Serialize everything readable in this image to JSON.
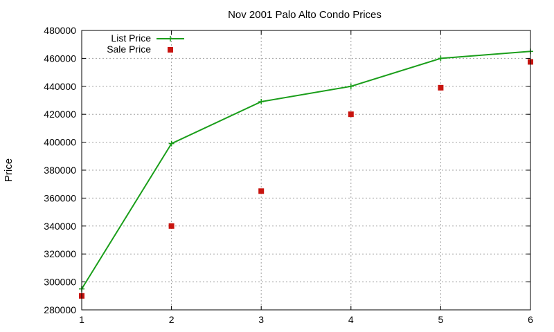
{
  "chart_data": {
    "type": "line",
    "title": "Nov 2001 Palo Alto Condo Prices",
    "xlabel": "",
    "ylabel": "Price",
    "xlim": [
      1,
      6
    ],
    "ylim": [
      280000,
      480000
    ],
    "x_ticks": [
      "1",
      "2",
      "3",
      "4",
      "5",
      "6"
    ],
    "y_ticks": [
      "280000",
      "300000",
      "320000",
      "340000",
      "360000",
      "380000",
      "400000",
      "420000",
      "440000",
      "460000",
      "480000"
    ],
    "grid": true,
    "legend_position": "top-left",
    "series": [
      {
        "name": "List Price",
        "style": "linespoints",
        "marker": "plus",
        "color": "#1a9e1a",
        "x": [
          1,
          2,
          3,
          4,
          5,
          6
        ],
        "y": [
          295000,
          399000,
          429000,
          440000,
          460000,
          465000
        ]
      },
      {
        "name": "Sale Price",
        "style": "points",
        "marker": "square",
        "color": "#c8140f",
        "x": [
          1,
          2,
          3,
          4,
          5,
          6
        ],
        "y": [
          290000,
          340000,
          365000,
          420000,
          439000,
          457500
        ]
      }
    ]
  }
}
